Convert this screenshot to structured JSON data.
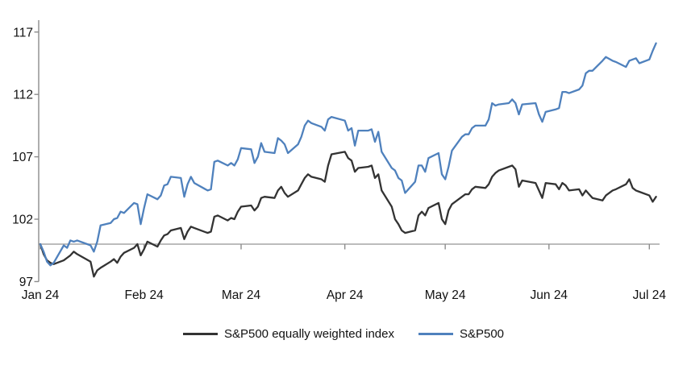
{
  "page": {
    "background": "#ffffff"
  },
  "chart_data": {
    "type": "line",
    "title": "",
    "xlabel": "",
    "ylabel": "",
    "grid": false,
    "legend_position": "bottom",
    "ylim": [
      97,
      117
    ],
    "y_ticks": [
      97,
      102,
      107,
      112,
      117
    ],
    "x_tick_labels": [
      "Jan 24",
      "Feb 24",
      "Mar 24",
      "Apr 24",
      "May 24",
      "Jun 24",
      "Jul 24"
    ],
    "x_tick_day_offsets": [
      0,
      31,
      60,
      91,
      121,
      152,
      182
    ],
    "baseline_value": 100,
    "colors": {
      "axis": "#8c8c8c",
      "baseline": "#a6a6a6",
      "text": "#111111"
    },
    "dates": [
      "01-01",
      "01-02",
      "01-03",
      "01-04",
      "01-05",
      "01-08",
      "01-09",
      "01-10",
      "01-11",
      "01-12",
      "01-16",
      "01-17",
      "01-18",
      "01-19",
      "01-22",
      "01-23",
      "01-24",
      "01-25",
      "01-26",
      "01-29",
      "01-30",
      "01-31",
      "02-01",
      "02-02",
      "02-05",
      "02-06",
      "02-07",
      "02-08",
      "02-09",
      "02-12",
      "02-13",
      "02-14",
      "02-15",
      "02-16",
      "02-20",
      "02-21",
      "02-22",
      "02-23",
      "02-26",
      "02-27",
      "02-28",
      "02-29",
      "03-01",
      "03-04",
      "03-05",
      "03-06",
      "03-07",
      "03-08",
      "03-11",
      "03-12",
      "03-13",
      "03-14",
      "03-15",
      "03-18",
      "03-19",
      "03-20",
      "03-21",
      "03-22",
      "03-25",
      "03-26",
      "03-27",
      "03-28",
      "04-01",
      "04-02",
      "04-03",
      "04-04",
      "04-05",
      "04-08",
      "04-09",
      "04-10",
      "04-11",
      "04-12",
      "04-15",
      "04-16",
      "04-17",
      "04-18",
      "04-19",
      "04-22",
      "04-23",
      "04-24",
      "04-25",
      "04-26",
      "04-29",
      "04-30",
      "05-01",
      "05-02",
      "05-03",
      "05-06",
      "05-07",
      "05-08",
      "05-09",
      "05-10",
      "05-13",
      "05-14",
      "05-15",
      "05-16",
      "05-17",
      "05-20",
      "05-21",
      "05-22",
      "05-23",
      "05-24",
      "05-28",
      "05-29",
      "05-30",
      "05-31",
      "06-03",
      "06-04",
      "06-05",
      "06-06",
      "06-07",
      "06-10",
      "06-11",
      "06-12",
      "06-13",
      "06-14",
      "06-17",
      "06-18",
      "06-20",
      "06-21",
      "06-24",
      "06-25",
      "06-26",
      "06-27",
      "06-28",
      "07-01",
      "07-02",
      "07-03"
    ],
    "series": [
      {
        "name": "S&P500 equally weighted index",
        "color": "#333333",
        "values": [
          100.0,
          99.2,
          98.7,
          98.5,
          98.4,
          98.7,
          98.9,
          99.1,
          99.4,
          99.2,
          98.6,
          97.4,
          97.9,
          98.1,
          98.6,
          98.8,
          98.5,
          99.0,
          99.3,
          99.7,
          100.0,
          99.1,
          99.6,
          100.2,
          99.8,
          100.3,
          100.7,
          100.8,
          101.1,
          101.3,
          100.4,
          101.0,
          101.4,
          101.3,
          100.9,
          101.0,
          102.2,
          102.3,
          101.9,
          102.1,
          102.0,
          102.6,
          103.0,
          103.1,
          102.7,
          103.0,
          103.7,
          103.8,
          103.7,
          104.3,
          104.6,
          104.1,
          103.8,
          104.3,
          104.8,
          105.3,
          105.6,
          105.4,
          105.2,
          105.0,
          106.3,
          107.2,
          107.4,
          106.9,
          106.7,
          105.8,
          106.1,
          106.2,
          106.3,
          105.3,
          105.6,
          104.3,
          103.0,
          102.0,
          101.6,
          101.1,
          100.9,
          101.1,
          102.3,
          102.6,
          102.3,
          102.9,
          103.3,
          102.0,
          101.6,
          102.7,
          103.2,
          103.8,
          104.0,
          104.0,
          104.4,
          104.6,
          104.5,
          104.8,
          105.4,
          105.7,
          105.9,
          106.2,
          106.3,
          106.0,
          104.6,
          105.1,
          104.9,
          104.3,
          103.7,
          104.9,
          104.8,
          104.4,
          104.9,
          104.7,
          104.3,
          104.4,
          103.9,
          104.3,
          104.0,
          103.7,
          103.5,
          103.9,
          104.3,
          104.4,
          104.8,
          105.2,
          104.5,
          104.3,
          104.2,
          103.9,
          103.4,
          103.8
        ]
      },
      {
        "name": "S&P500",
        "color": "#4f81bd",
        "values": [
          100.0,
          99.4,
          98.6,
          98.3,
          98.5,
          99.9,
          99.7,
          100.3,
          100.2,
          100.3,
          99.9,
          99.4,
          100.2,
          101.5,
          101.7,
          102.0,
          102.1,
          102.6,
          102.5,
          103.3,
          103.2,
          101.6,
          102.9,
          104.0,
          103.6,
          103.9,
          104.7,
          104.8,
          105.4,
          105.3,
          103.8,
          104.8,
          105.4,
          104.9,
          104.3,
          104.4,
          106.6,
          106.7,
          106.3,
          106.5,
          106.3,
          106.8,
          107.7,
          107.6,
          106.5,
          107.0,
          108.1,
          107.4,
          107.3,
          108.5,
          108.3,
          108.0,
          107.3,
          108.0,
          108.6,
          109.5,
          109.9,
          109.7,
          109.4,
          109.1,
          110.0,
          110.2,
          109.9,
          109.1,
          109.3,
          107.9,
          109.1,
          109.1,
          109.2,
          108.2,
          109.0,
          107.4,
          106.1,
          105.9,
          105.3,
          105.1,
          104.1,
          105.0,
          106.3,
          106.3,
          105.8,
          106.9,
          107.3,
          105.6,
          105.2,
          106.2,
          107.5,
          108.6,
          108.8,
          108.8,
          109.3,
          109.5,
          109.5,
          110.0,
          111.3,
          111.1,
          111.2,
          111.3,
          111.6,
          111.3,
          110.4,
          111.2,
          111.3,
          110.4,
          109.8,
          110.6,
          110.8,
          110.9,
          112.2,
          112.2,
          112.1,
          112.4,
          112.7,
          113.7,
          113.9,
          113.9,
          114.7,
          115.0,
          114.7,
          114.6,
          114.2,
          114.7,
          114.8,
          114.9,
          114.5,
          114.8,
          115.5,
          116.1
        ]
      }
    ]
  }
}
